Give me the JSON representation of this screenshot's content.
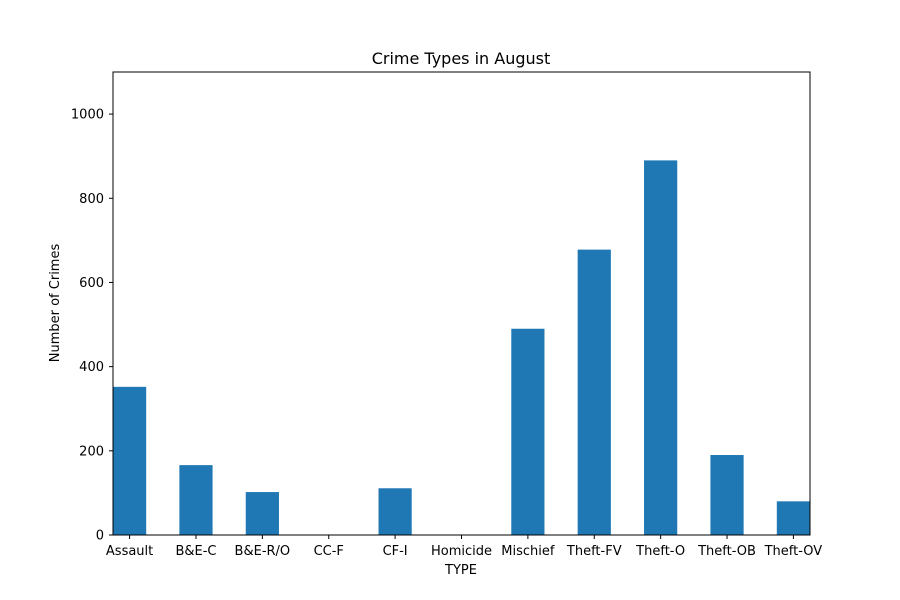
{
  "chart_data": {
    "type": "bar",
    "title": "Crime Types in August",
    "xlabel": "TYPE",
    "ylabel": "Number of Crimes",
    "categories": [
      "Assault",
      "B&E-C",
      "B&E-R/O",
      "CC-F",
      "CF-I",
      "Homicide",
      "Mischief",
      "Theft-FV",
      "Theft-O",
      "Theft-OB",
      "Theft-OV"
    ],
    "values": [
      352,
      166,
      102,
      0,
      111,
      0,
      490,
      678,
      890,
      190,
      80
    ],
    "ylim": [
      0,
      1100
    ],
    "yticks": [
      0,
      200,
      400,
      600,
      800,
      1000
    ],
    "bar_color": "#1f77b4",
    "grid": false,
    "legend": false
  }
}
